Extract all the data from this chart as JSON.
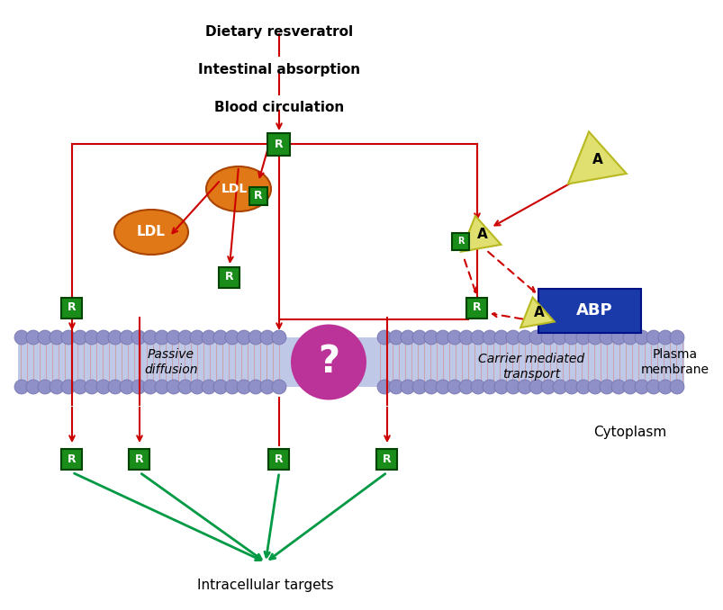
{
  "background_color": "#ffffff",
  "r_box_color": "#1a8c1a",
  "r_text_color": "#ffffff",
  "ldl_color": "#e07818",
  "abp_color": "#1a3aaa",
  "albumin_color": "#e0e070",
  "albumin_edge": "#b8b820",
  "question_circle_color": "#bb3399",
  "arrow_red": "#cc0000",
  "arrow_green": "#009944",
  "membrane_fill": "#c0c8e8",
  "membrane_circle": "#9090c8",
  "membrane_circle_edge": "#7070aa",
  "membrane_tail": "#d09090",
  "texts": {
    "dietary": "Dietary resveratrol",
    "intestinal": "Intestinal absorption",
    "blood": "Blood circulation",
    "passive": "Passive\ndiffusion",
    "carrier": "Carrier mediated\ntransport",
    "plasma": "Plasma\nmembrane",
    "cytoplasm": "Cytoplasm",
    "intracellular": "Intracellular targets",
    "question": "?",
    "ldl": "LDL",
    "abp": "ABP",
    "r": "R",
    "a": "A"
  },
  "figsize": [
    8.04,
    6.78
  ],
  "dpi": 100
}
